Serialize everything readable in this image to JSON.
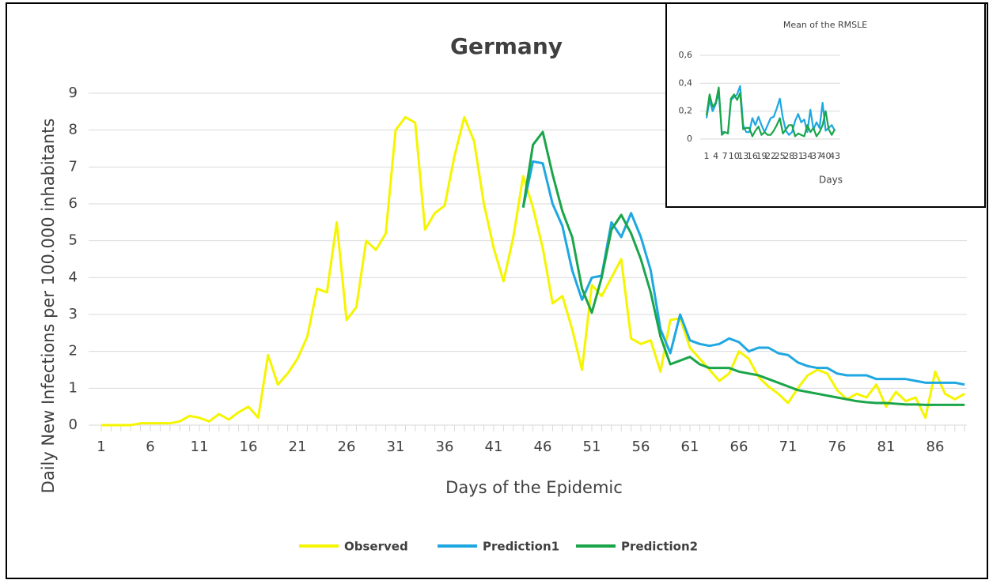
{
  "chart_data": [
    {
      "type": "line",
      "title": "Germany",
      "x_label": "Days of the Epidemic",
      "y_label": "Daily New Infections per 100.000 inhabitants",
      "categories": [
        "1",
        null,
        null,
        null,
        null,
        "6",
        null,
        null,
        null,
        null,
        "11",
        null,
        null,
        null,
        null,
        "16",
        null,
        null,
        null,
        null,
        "21",
        null,
        null,
        null,
        null,
        "26",
        null,
        null,
        null,
        null,
        "31",
        null,
        null,
        null,
        null,
        "36",
        null,
        null,
        null,
        null,
        "41",
        null,
        null,
        null,
        null,
        "46",
        null,
        null,
        null,
        null,
        "51",
        null,
        null,
        null,
        null,
        "56",
        null,
        null,
        null,
        null,
        "61",
        null,
        null,
        null,
        null,
        "66",
        null,
        null,
        null,
        null,
        "71",
        null,
        null,
        null,
        null,
        "76",
        null,
        null,
        null,
        null,
        "81",
        null,
        null,
        null,
        null,
        "86",
        null,
        null,
        null
      ],
      "ylim": [
        0,
        9
      ],
      "yticks": [
        0,
        1,
        2,
        3,
        4,
        5,
        6,
        7,
        8,
        9
      ],
      "grid": true,
      "legend": "bottom",
      "series": [
        {
          "name": "Observed",
          "color": "#f5f500",
          "values": [
            0,
            0,
            0,
            0,
            0.05,
            0.05,
            0.05,
            0.05,
            0.1,
            0.25,
            0.2,
            0.1,
            0.3,
            0.15,
            0.35,
            0.5,
            0.2,
            1.9,
            1.1,
            1.4,
            1.8,
            2.4,
            3.7,
            3.6,
            5.5,
            2.85,
            3.2,
            5.0,
            4.75,
            5.2,
            8.0,
            8.35,
            8.2,
            5.3,
            5.75,
            5.95,
            7.3,
            8.35,
            7.7,
            6.0,
            4.8,
            3.9,
            5.1,
            6.75,
            5.9,
            4.8,
            3.3,
            3.5,
            2.6,
            1.5,
            3.8,
            3.5,
            4.0,
            4.5,
            2.35,
            2.2,
            2.3,
            1.45,
            2.85,
            2.9,
            2.1,
            1.8,
            1.5,
            1.2,
            1.4,
            2.0,
            1.8,
            1.3,
            1.05,
            0.85,
            0.6,
            1.0,
            1.35,
            1.5,
            1.4,
            0.95,
            0.7,
            0.85,
            0.75,
            1.1,
            0.5,
            0.9,
            0.65,
            0.75,
            0.2,
            1.45,
            0.85,
            0.7,
            0.85
          ]
        },
        {
          "name": "Prediction1",
          "color": "#1ea7e1",
          "values": [
            null,
            null,
            null,
            null,
            null,
            null,
            null,
            null,
            null,
            null,
            null,
            null,
            null,
            null,
            null,
            null,
            null,
            null,
            null,
            null,
            null,
            null,
            null,
            null,
            null,
            null,
            null,
            null,
            null,
            null,
            null,
            null,
            null,
            null,
            null,
            null,
            null,
            null,
            null,
            null,
            null,
            null,
            null,
            5.9,
            7.15,
            7.1,
            6.0,
            5.4,
            4.2,
            3.4,
            4.0,
            4.05,
            5.5,
            5.1,
            5.75,
            5.1,
            4.2,
            2.6,
            1.95,
            3.0,
            2.3,
            2.2,
            2.15,
            2.2,
            2.35,
            2.25,
            2.0,
            2.1,
            2.1,
            1.95,
            1.9,
            1.7,
            1.6,
            1.55,
            1.55,
            1.4,
            1.35,
            1.35,
            1.35,
            1.25,
            1.25,
            1.25,
            1.25,
            1.2,
            1.15,
            1.15,
            1.15,
            1.15,
            1.1
          ]
        },
        {
          "name": "Prediction2",
          "color": "#1aa54a",
          "values": [
            null,
            null,
            null,
            null,
            null,
            null,
            null,
            null,
            null,
            null,
            null,
            null,
            null,
            null,
            null,
            null,
            null,
            null,
            null,
            null,
            null,
            null,
            null,
            null,
            null,
            null,
            null,
            null,
            null,
            null,
            null,
            null,
            null,
            null,
            null,
            null,
            null,
            null,
            null,
            null,
            null,
            null,
            null,
            5.9,
            7.6,
            7.95,
            6.8,
            5.8,
            5.1,
            3.7,
            3.05,
            4.0,
            5.3,
            5.7,
            5.2,
            4.5,
            3.6,
            2.4,
            1.65,
            1.75,
            1.85,
            1.65,
            1.55,
            1.55,
            1.55,
            1.45,
            1.4,
            1.35,
            1.25,
            1.15,
            1.05,
            0.95,
            0.9,
            0.85,
            0.8,
            0.75,
            0.7,
            0.65,
            0.62,
            0.6,
            0.6,
            0.58,
            0.56,
            0.56,
            0.55,
            0.55,
            0.55,
            0.55,
            0.55
          ]
        }
      ]
    },
    {
      "type": "line",
      "title": "Mean of the RMSLE",
      "x_label": "Days",
      "categories": [
        "1",
        null,
        null,
        "4",
        null,
        null,
        "7",
        null,
        null,
        "10",
        null,
        null,
        "13",
        null,
        null,
        "16",
        null,
        null,
        "19",
        null,
        null,
        "22",
        null,
        null,
        "25",
        null,
        null,
        "28",
        null,
        null,
        "31",
        null,
        null,
        "34",
        null,
        null,
        "37",
        null,
        null,
        "40",
        null,
        null,
        "43"
      ],
      "ylim": [
        0,
        0.6
      ],
      "yticks": [
        0,
        {
          "value": 0.2,
          "label": "0,2"
        },
        {
          "value": 0.4,
          "label": "0,4"
        },
        {
          "value": 0.6,
          "label": "0,6"
        }
      ],
      "grid": true,
      "series": [
        {
          "color": "#1ea7e1",
          "values": [
            0.15,
            0.28,
            0.2,
            0.25,
            0.33,
            0.05,
            0.05,
            0.04,
            0.28,
            0.3,
            0.32,
            0.38,
            0.1,
            0.05,
            0.05,
            0.15,
            0.1,
            0.16,
            0.1,
            0.05,
            0.1,
            0.15,
            0.16,
            0.22,
            0.29,
            0.15,
            0.06,
            0.03,
            0.05,
            0.13,
            0.18,
            0.12,
            0.14,
            0.05,
            0.21,
            0.07,
            0.12,
            0.08,
            0.26,
            0.06,
            0.08,
            0.1,
            0.06
          ]
        },
        {
          "color": "#1aa54a",
          "values": [
            0.17,
            0.32,
            0.23,
            0.26,
            0.37,
            0.03,
            0.05,
            0.04,
            0.29,
            0.32,
            0.28,
            0.33,
            0.07,
            0.08,
            0.08,
            0.02,
            0.06,
            0.09,
            0.03,
            0.05,
            0.03,
            0.03,
            0.06,
            0.1,
            0.15,
            0.04,
            0.07,
            0.1,
            0.1,
            0.02,
            0.04,
            0.03,
            0.02,
            0.1,
            0.05,
            0.08,
            0.02,
            0.05,
            0.1,
            0.2,
            0.07,
            0.03,
            0.07
          ]
        }
      ]
    }
  ]
}
